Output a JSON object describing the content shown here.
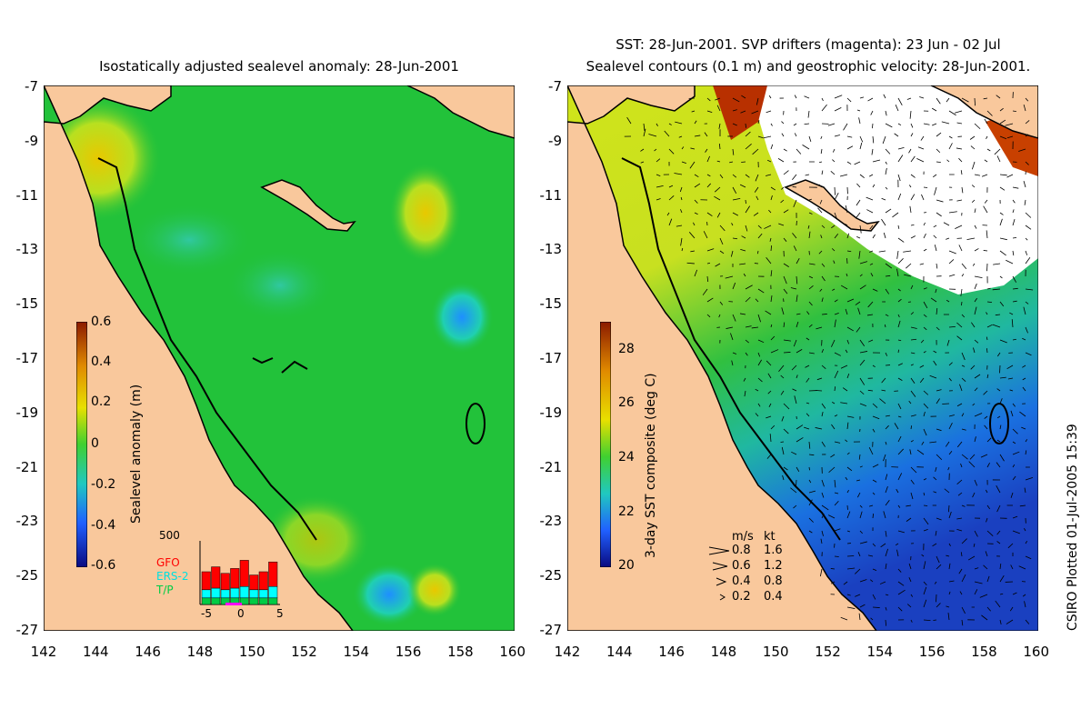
{
  "left_panel": {
    "title": "Isostatically adjusted sealevel anomaly: 28-Jun-2001",
    "colorbar": {
      "title": "Sealevel anomaly (m)",
      "ticks": [
        "0.6",
        "0.4",
        "0.2",
        "0",
        "-0.2",
        "-0.4",
        "-0.6"
      ]
    },
    "histogram": {
      "ymax_label": "500",
      "legend": [
        "GFO",
        "ERS-2",
        "T/P"
      ],
      "legend_colors": [
        "#ff0000",
        "#00ffff",
        "#00cc44"
      ],
      "xticks": [
        "-5",
        "0",
        "5"
      ]
    }
  },
  "right_panel": {
    "title_line1": "SST: 28-Jun-2001. SVP drifters (magenta): 23 Jun - 02 Jul",
    "title_line2": "Sealevel contours (0.1 m) and geostrophic velocity: 28-Jun-2001.",
    "colorbar": {
      "title": "3-day SST composite (deg C)",
      "ticks": [
        "28",
        "26",
        "24",
        "22",
        "20"
      ]
    },
    "vector_legend": {
      "headers": [
        "m/s",
        "kt"
      ],
      "rows": [
        {
          "ms": "0.8",
          "kt": "1.6"
        },
        {
          "ms": "0.6",
          "kt": "1.2"
        },
        {
          "ms": "0.4",
          "kt": "0.8"
        },
        {
          "ms": "0.2",
          "kt": "0.4"
        }
      ]
    }
  },
  "axes": {
    "y_ticks": [
      "-7",
      "-9",
      "-11",
      "-13",
      "-15",
      "-17",
      "-19",
      "-21",
      "-23",
      "-25",
      "-27"
    ],
    "x_ticks": [
      "142",
      "144",
      "146",
      "148",
      "150",
      "152",
      "154",
      "156",
      "158",
      "160"
    ]
  },
  "credit": "CSIRO Plotted 01-Jul-2005 15:39",
  "colors": {
    "land": "#f9c89c",
    "sea_anomaly": "#22c23a",
    "sst_warm": "#c8e61e"
  }
}
